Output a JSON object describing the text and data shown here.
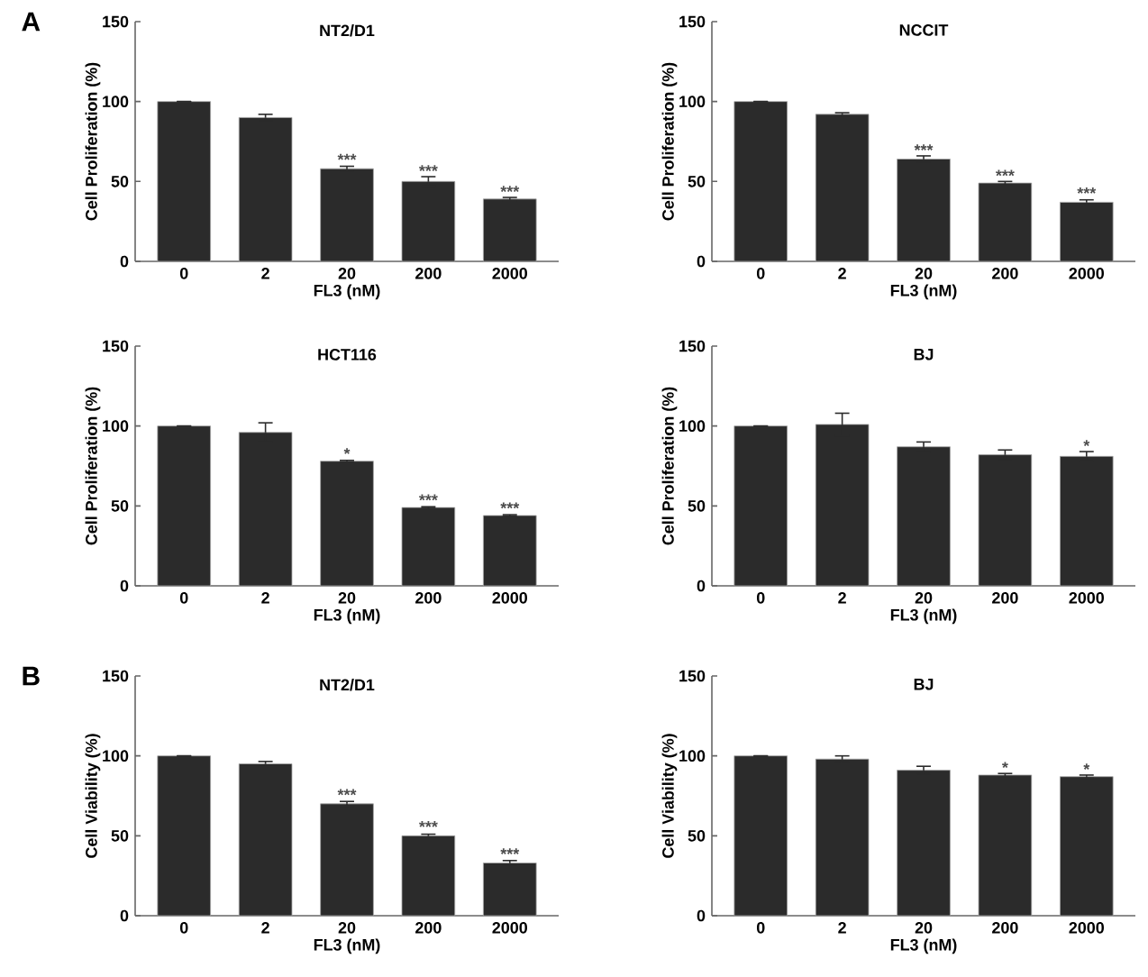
{
  "chart_data": [
    {
      "type": "bar",
      "title": "NT2/D1",
      "xlabel": "FL3 (nM)",
      "ylabel": "Cell Proliferation (%)",
      "categories": [
        "0",
        "2",
        "20",
        "200",
        "2000"
      ],
      "values": [
        100,
        90,
        58,
        50,
        39
      ],
      "errors": [
        null,
        2,
        1.5,
        3,
        1
      ],
      "color": "#2b2b2b",
      "ylim": [
        0,
        150
      ],
      "yticks": [
        0,
        50,
        100,
        150
      ],
      "annotations": [
        "A",
        {
          "text": "***",
          "x": "20",
          "y": 60
        },
        {
          "text": "***",
          "x": "200",
          "y": 53
        },
        {
          "text": "***",
          "x": "2000",
          "y": 40
        }
      ]
    },
    {
      "type": "bar",
      "title": "NCCIT",
      "xlabel": "FL3 (nM)",
      "ylabel": "Cell Proliferation (%)",
      "categories": [
        "0",
        "2",
        "20",
        "200",
        "2000"
      ],
      "values": [
        100,
        92,
        64,
        49,
        37
      ],
      "errors": [
        null,
        1,
        2,
        1,
        1.5
      ],
      "color": "#2b2b2b",
      "ylim": [
        0,
        150
      ],
      "yticks": [
        0,
        50,
        100,
        150
      ],
      "annotations": [
        {
          "text": "***",
          "x": "20",
          "y": 66
        },
        {
          "text": "***",
          "x": "200",
          "y": 50
        },
        {
          "text": "***",
          "x": "2000",
          "y": 39
        }
      ]
    },
    {
      "type": "bar",
      "title": "HCT116",
      "xlabel": "FL3 (nM)",
      "ylabel": "Cell Proliferation (%)",
      "categories": [
        "0",
        "2",
        "20",
        "200",
        "2000"
      ],
      "values": [
        100,
        96,
        78,
        49,
        44
      ],
      "errors": [
        null,
        6,
        0.5,
        0.5,
        0.5
      ],
      "color": "#2b2b2b",
      "ylim": [
        0,
        150
      ],
      "yticks": [
        0,
        50,
        100,
        150
      ],
      "annotations": [
        {
          "text": "*",
          "x": "20",
          "y": 79
        },
        {
          "text": "***",
          "x": "200",
          "y": 50
        },
        {
          "text": "***",
          "x": "2000",
          "y": 45
        }
      ]
    },
    {
      "type": "bar",
      "title": "BJ",
      "xlabel": "FL3 (nM)",
      "ylabel": "Cell Proliferation (%)",
      "categories": [
        "0",
        "2",
        "20",
        "200",
        "2000"
      ],
      "values": [
        100,
        101,
        87,
        82,
        81
      ],
      "errors": [
        null,
        7,
        3,
        3,
        3
      ],
      "color": "#2b2b2b",
      "ylim": [
        0,
        150
      ],
      "yticks": [
        0,
        50,
        100,
        150
      ],
      "annotations": [
        {
          "text": "*",
          "x": "2000",
          "y": 84
        }
      ]
    },
    {
      "type": "bar",
      "title": "NT2/D1",
      "xlabel": "FL3 (nM)",
      "ylabel": "Cell Viability (%)",
      "categories": [
        "0",
        "2",
        "20",
        "200",
        "2000"
      ],
      "values": [
        100,
        95,
        70,
        50,
        33
      ],
      "errors": [
        null,
        1.5,
        1.5,
        1,
        1.5
      ],
      "color": "#2b2b2b",
      "ylim": [
        0,
        150
      ],
      "yticks": [
        0,
        50,
        100,
        150
      ],
      "annotations": [
        "B",
        {
          "text": "***",
          "x": "20",
          "y": 72
        },
        {
          "text": "***",
          "x": "200",
          "y": 52
        },
        {
          "text": "***",
          "x": "2000",
          "y": 35
        }
      ]
    },
    {
      "type": "bar",
      "title": "BJ",
      "xlabel": "FL3 (nM)",
      "ylabel": "Cell Viability (%)",
      "categories": [
        "0",
        "2",
        "20",
        "200",
        "2000"
      ],
      "values": [
        100,
        98,
        91,
        88,
        87
      ],
      "errors": [
        null,
        2,
        2.5,
        1,
        1
      ],
      "color": "#2b2b2b",
      "ylim": [
        0,
        150
      ],
      "yticks": [
        0,
        50,
        100,
        150
      ],
      "annotations": [
        {
          "text": "*",
          "x": "200",
          "y": 89
        },
        {
          "text": "*",
          "x": "2000",
          "y": 88
        }
      ]
    }
  ]
}
